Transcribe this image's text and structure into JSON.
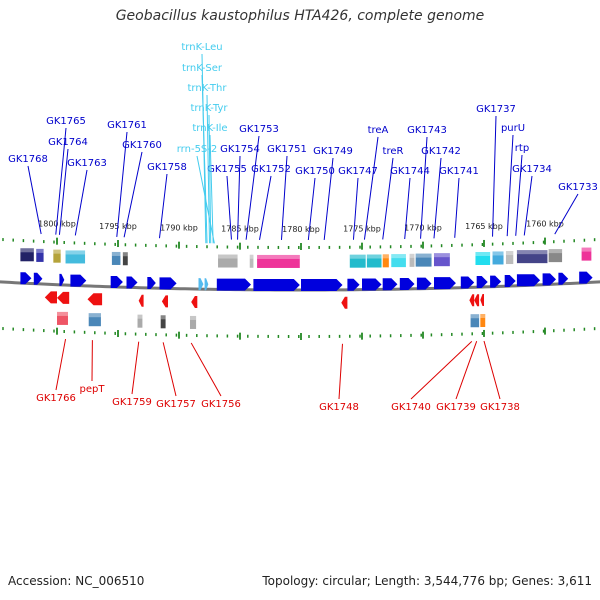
{
  "title": "Geobacillus kaustophilus HTA426, complete genome",
  "footer": {
    "accession": "Accession: NC_006510",
    "stats": "Topology: circular; Length: 3,544,776 bp; Genes: 3,611"
  },
  "colors": {
    "forward_label": "#0000cc",
    "reverse_label": "#dd0000",
    "rna_label": "#44ccee",
    "forward_arrow": "#0000dd",
    "reverse_arrow": "#ee1111",
    "backbone": "#777777",
    "tick": "#228822"
  },
  "chart_data": {
    "type": "genome-map",
    "kbp_ticks": [
      {
        "label": "1800 kbp",
        "kbp": 1800
      },
      {
        "label": "1795 kbp",
        "kbp": 1795
      },
      {
        "label": "1790 kbp",
        "kbp": 1790
      },
      {
        "label": "1785 kbp",
        "kbp": 1785
      },
      {
        "label": "1780 kbp",
        "kbp": 1780
      },
      {
        "label": "1775 kbp",
        "kbp": 1775
      },
      {
        "label": "1770 kbp",
        "kbp": 1770
      },
      {
        "label": "1765 kbp",
        "kbp": 1765
      },
      {
        "label": "1760 kbp",
        "kbp": 1760
      }
    ],
    "forward_labels": [
      {
        "text": "GK1768",
        "kbp": 1801.3
      },
      {
        "text": "GK1765",
        "kbp": 1800.1
      },
      {
        "text": "GK1764",
        "kbp": 1799.8
      },
      {
        "text": "GK1763",
        "kbp": 1798.5
      },
      {
        "text": "GK1761",
        "kbp": 1795.1
      },
      {
        "text": "GK1760",
        "kbp": 1794.5
      },
      {
        "text": "GK1758",
        "kbp": 1791.6
      },
      {
        "text": "GK1755",
        "kbp": 1785.7
      },
      {
        "text": "GK1753",
        "kbp": 1784.5
      },
      {
        "text": "GK1754",
        "kbp": 1785.2
      },
      {
        "text": "GK1752",
        "kbp": 1783.4
      },
      {
        "text": "GK1751",
        "kbp": 1781.6
      },
      {
        "text": "GK1750",
        "kbp": 1779.4
      },
      {
        "text": "GK1749",
        "kbp": 1778.1
      },
      {
        "text": "GK1747",
        "kbp": 1775.7
      },
      {
        "text": "treA",
        "kbp": 1774.8
      },
      {
        "text": "treR",
        "kbp": 1773.3
      },
      {
        "text": "GK1744",
        "kbp": 1771.5
      },
      {
        "text": "GK1743",
        "kbp": 1770.2
      },
      {
        "text": "GK1742",
        "kbp": 1769.1
      },
      {
        "text": "GK1741",
        "kbp": 1767.4
      },
      {
        "text": "GK1737",
        "kbp": 1764.3
      },
      {
        "text": "purU",
        "kbp": 1763.1
      },
      {
        "text": "rtp",
        "kbp": 1762.4
      },
      {
        "text": "GK1734",
        "kbp": 1761.7
      },
      {
        "text": "GK1733",
        "kbp": 1759.2
      }
    ],
    "rna_labels": [
      {
        "text": "trnK-Leu",
        "kbp": 1787.8
      },
      {
        "text": "trnK-Ser",
        "kbp": 1787.7
      },
      {
        "text": "trnK-Thr",
        "kbp": 1787.5
      },
      {
        "text": "trnK-Tyr",
        "kbp": 1787.4
      },
      {
        "text": "trnK-Ile",
        "kbp": 1787.2
      },
      {
        "text": "rrn-5S-2",
        "kbp": 1787.1
      }
    ],
    "reverse_labels": [
      {
        "text": "GK1766",
        "kbp": 1799.3
      },
      {
        "text": "pepT",
        "kbp": 1797.1
      },
      {
        "text": "GK1759",
        "kbp": 1793.3
      },
      {
        "text": "GK1757",
        "kbp": 1791.3
      },
      {
        "text": "GK1756",
        "kbp": 1789.0
      },
      {
        "text": "GK1748",
        "kbp": 1776.6
      },
      {
        "text": "GK1740",
        "kbp": 1766.0
      },
      {
        "text": "GK1739",
        "kbp": 1765.6
      },
      {
        "text": "GK1738",
        "kbp": 1765.0
      }
    ],
    "forward_features": [
      {
        "start": 1803.0,
        "end": 1801.9,
        "color": "#222266"
      },
      {
        "start": 1801.7,
        "end": 1801.1,
        "color": "#3333aa"
      },
      {
        "start": 1800.3,
        "end": 1799.7,
        "color": "#b5a33a"
      },
      {
        "start": 1799.3,
        "end": 1797.7,
        "color": "#44bbdd"
      },
      {
        "start": 1795.5,
        "end": 1794.8,
        "color": "#4a87b8"
      },
      {
        "start": 1794.6,
        "end": 1794.2,
        "color": "#444444"
      },
      {
        "start": 1786.8,
        "end": 1785.2,
        "color": "#aaaaaa"
      },
      {
        "start": 1784.2,
        "end": 1783.9,
        "color": "#bbbbbb"
      },
      {
        "start": 1783.6,
        "end": 1780.1,
        "color": "#ee3399"
      },
      {
        "start": 1776.0,
        "end": 1774.7,
        "color": "#22bbcc"
      },
      {
        "start": 1774.6,
        "end": 1773.4,
        "color": "#22bbcc"
      },
      {
        "start": 1773.3,
        "end": 1772.8,
        "color": "#ff8811"
      },
      {
        "start": 1772.6,
        "end": 1771.4,
        "color": "#44ddee"
      },
      {
        "start": 1771.1,
        "end": 1770.7,
        "color": "#bbbbbb"
      },
      {
        "start": 1770.6,
        "end": 1769.3,
        "color": "#4a87b8"
      },
      {
        "start": 1769.1,
        "end": 1767.8,
        "color": "#6655cc"
      },
      {
        "start": 1765.7,
        "end": 1764.5,
        "color": "#22ddee"
      },
      {
        "start": 1764.3,
        "end": 1763.4,
        "color": "#44aadd"
      },
      {
        "start": 1763.2,
        "end": 1762.6,
        "color": "#bbbbbb"
      },
      {
        "start": 1762.3,
        "end": 1759.8,
        "color": "#444488"
      },
      {
        "start": 1759.7,
        "end": 1758.6,
        "color": "#888888"
      },
      {
        "start": 1757.0,
        "end": 1756.2,
        "color": "#ee3399"
      }
    ],
    "reverse_features": [
      {
        "start": 1800.0,
        "end": 1799.1,
        "color": "#ee5566"
      },
      {
        "start": 1797.4,
        "end": 1796.4,
        "color": "#4a87b8"
      },
      {
        "start": 1793.4,
        "end": 1793.0,
        "color": "#aaaaaa"
      },
      {
        "start": 1791.5,
        "end": 1791.1,
        "color": "#444444"
      },
      {
        "start": 1789.1,
        "end": 1788.6,
        "color": "#aaaaaa"
      },
      {
        "start": 1766.1,
        "end": 1765.4,
        "color": "#4a87b8"
      },
      {
        "start": 1765.3,
        "end": 1764.9,
        "color": "#ff8811"
      }
    ],
    "forward_genes": [
      [
        1803.0,
        1802.1
      ],
      [
        1801.9,
        1801.2
      ],
      [
        1799.8,
        1799.4
      ],
      [
        1798.9,
        1797.6
      ],
      [
        1795.6,
        1794.6
      ],
      [
        1794.3,
        1793.4
      ],
      [
        1792.6,
        1791.9
      ],
      [
        1791.6,
        1790.2
      ],
      [
        1788.4,
        1788.0
      ],
      [
        1787.9,
        1787.6
      ],
      [
        1786.9,
        1784.1
      ],
      [
        1783.9,
        1780.1
      ],
      [
        1780.0,
        1776.6
      ],
      [
        1776.2,
        1775.2
      ],
      [
        1775.0,
        1773.4
      ],
      [
        1773.3,
        1772.1
      ],
      [
        1771.9,
        1770.7
      ],
      [
        1770.5,
        1769.3
      ],
      [
        1769.1,
        1767.3
      ],
      [
        1766.9,
        1765.8
      ],
      [
        1765.6,
        1764.7
      ],
      [
        1764.5,
        1763.6
      ],
      [
        1763.3,
        1762.4
      ],
      [
        1762.3,
        1760.4
      ],
      [
        1760.2,
        1759.1
      ],
      [
        1758.9,
        1758.1
      ],
      [
        1757.2,
        1756.1
      ]
    ],
    "forward_gene_colors": {
      "[1788.4, 1788.0]": "#55bbee",
      "[1787.9, 1787.6]": "#55bbee"
    },
    "reverse_genes": [
      [
        1801.0,
        1800.0
      ],
      [
        1800.0,
        1799.0
      ],
      [
        1797.5,
        1796.3
      ],
      [
        1793.3,
        1792.9
      ],
      [
        1791.4,
        1790.9
      ],
      [
        1789.0,
        1788.5
      ],
      [
        1776.7,
        1776.2
      ],
      [
        1766.2,
        1765.8
      ],
      [
        1765.8,
        1765.4
      ],
      [
        1765.3,
        1765.0
      ]
    ]
  }
}
